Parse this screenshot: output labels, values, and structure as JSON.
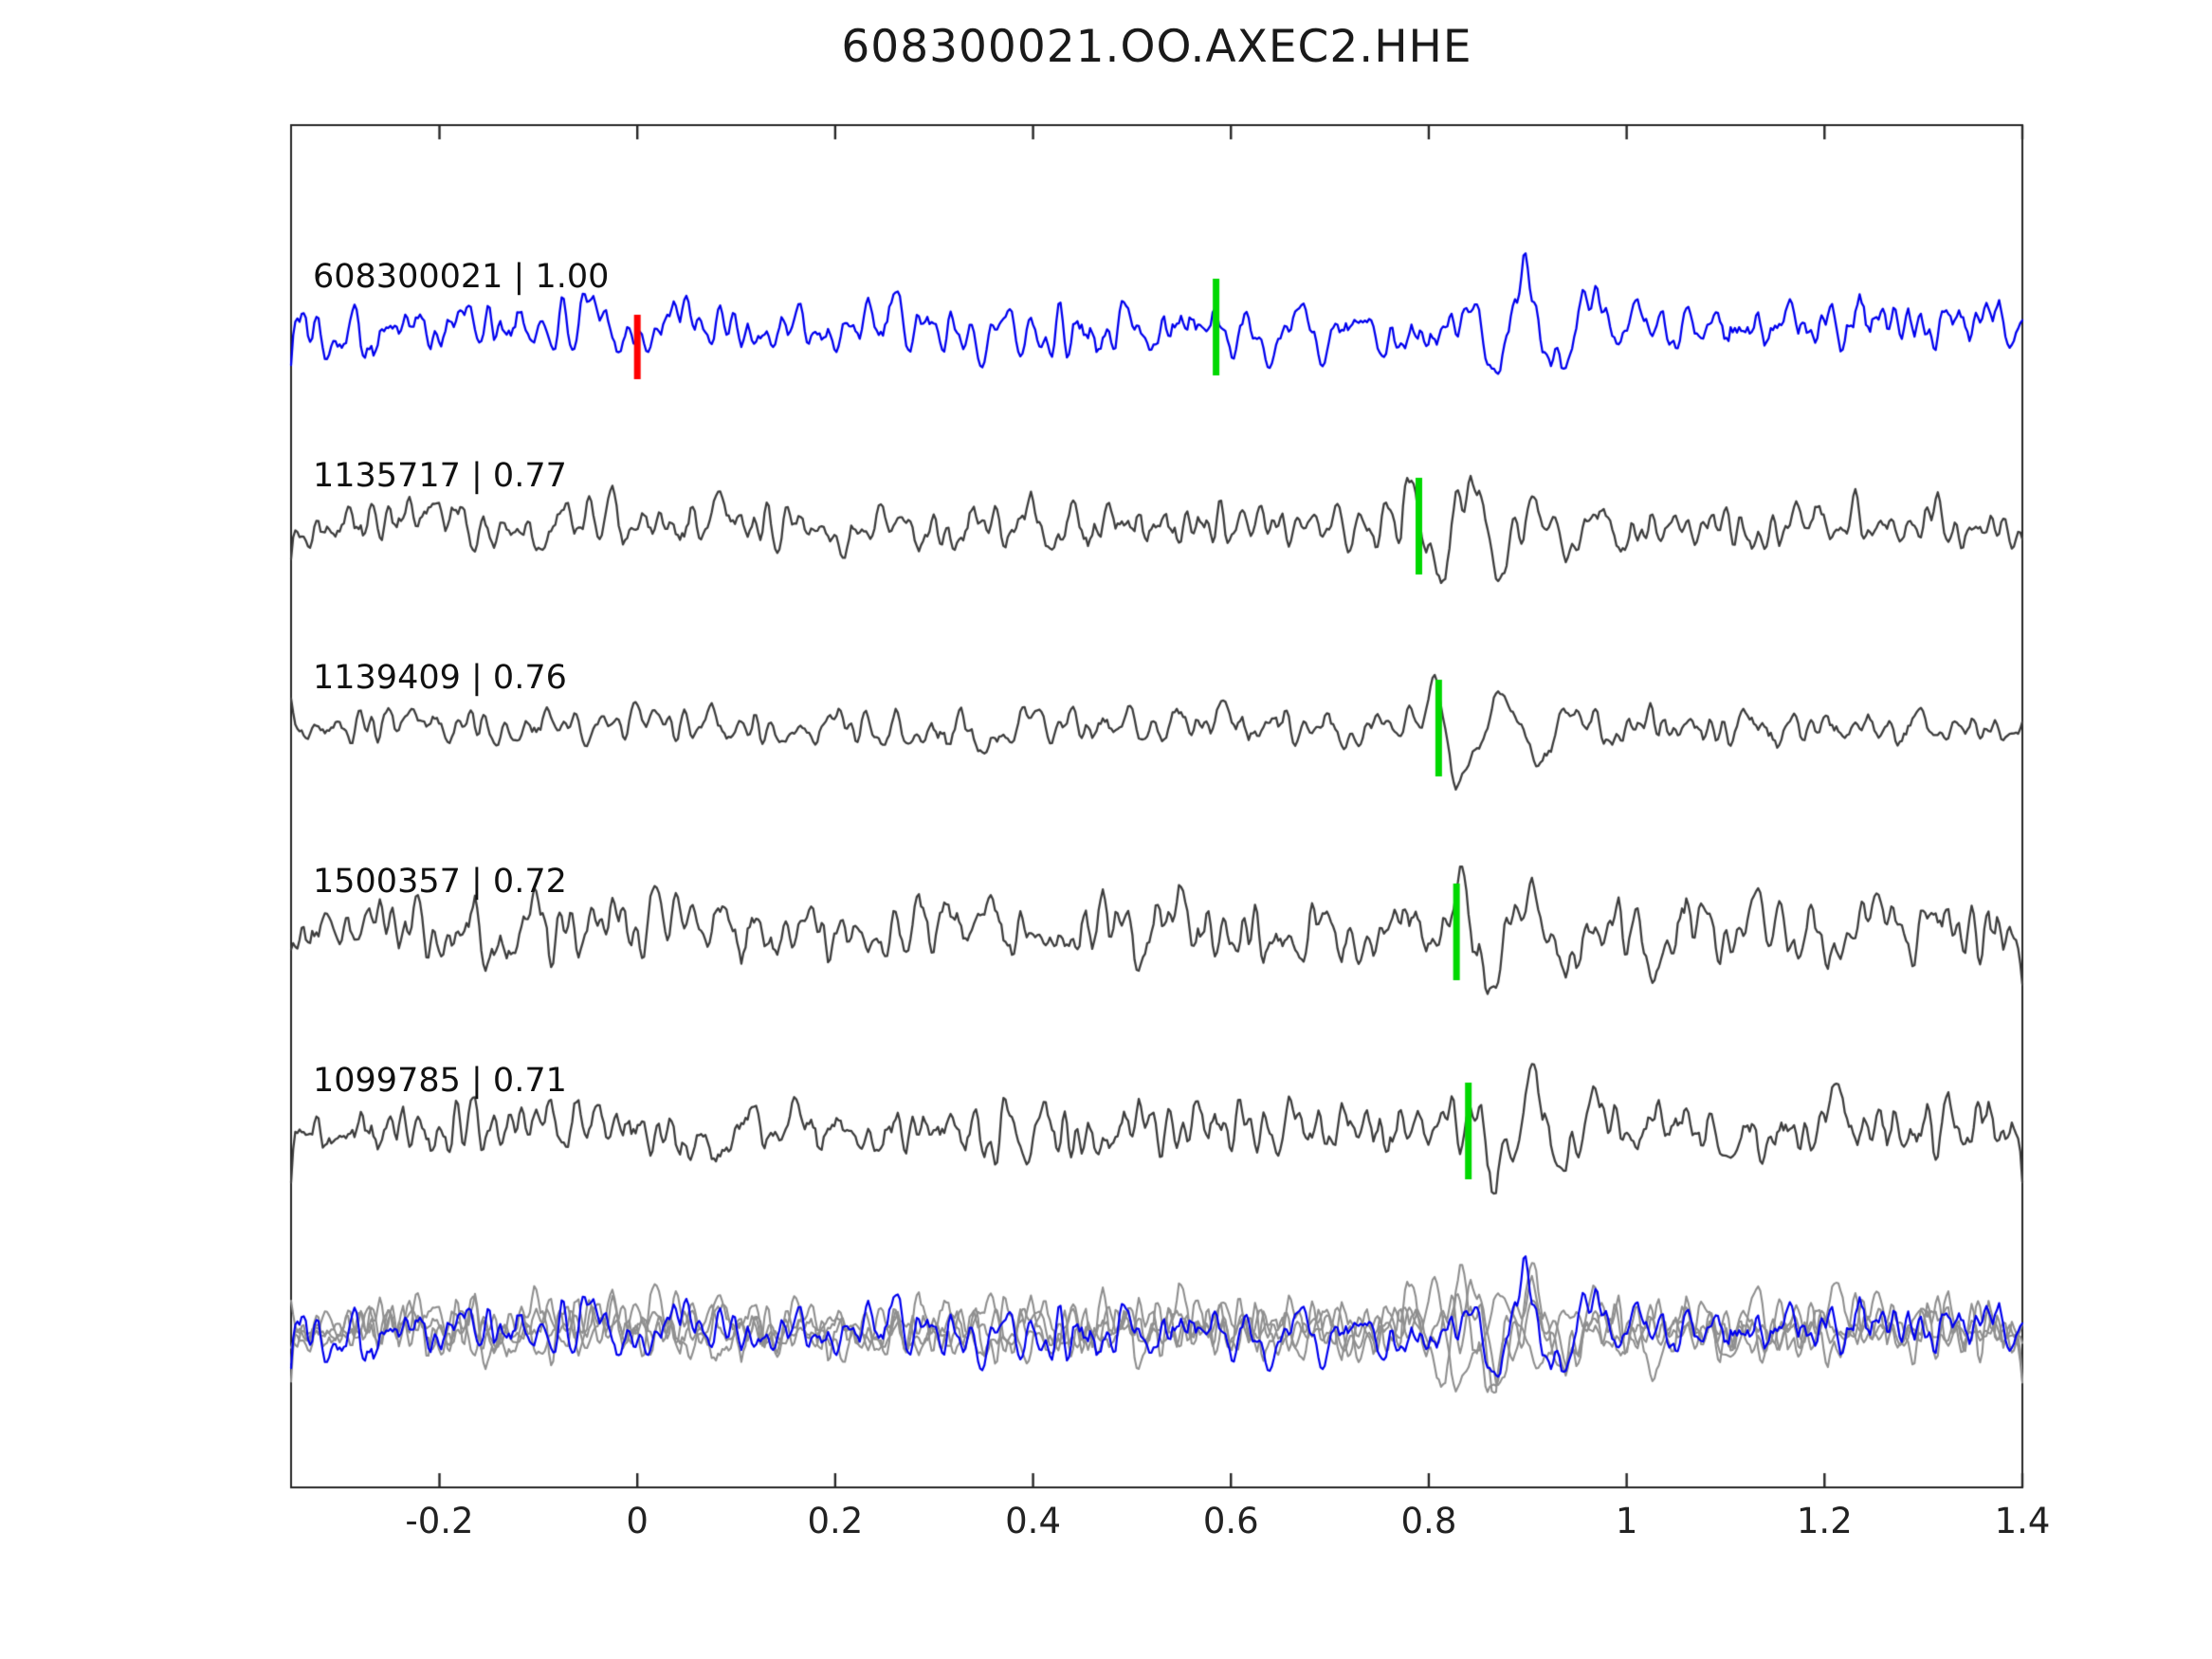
{
  "title": "608300021.OO.AXEC2.HHE",
  "chart_data": {
    "type": "line",
    "subtype": "seismic-waveform-stack",
    "title": "608300021.OO.AXEC2.HHE",
    "xlabel": "",
    "ylabel": "",
    "xlim": [
      -0.35,
      1.4
    ],
    "xticks": [
      {
        "value": -0.2,
        "label": "-0.2"
      },
      {
        "value": 0,
        "label": "0"
      },
      {
        "value": 0.2,
        "label": "0.2"
      },
      {
        "value": 0.4,
        "label": "0.4"
      },
      {
        "value": 0.6,
        "label": "0.6"
      },
      {
        "value": 0.8,
        "label": "0.8"
      },
      {
        "value": 1,
        "label": "1"
      },
      {
        "value": 1.2,
        "label": "1.2"
      },
      {
        "value": 1.4,
        "label": "1.4"
      }
    ],
    "grid": false,
    "legend": null,
    "colors": {
      "template_trace": "#0000ee",
      "detection_trace": "#3d3d3d",
      "overlay_gray": "#8f8f8f",
      "pick_green": "#00d800",
      "marker_red": "#ff0000",
      "axis": "#262626",
      "text": "#111111"
    },
    "traces": [
      {
        "id": "608300021",
        "score": "1.00",
        "label": "608300021 | 1.00",
        "role": "template",
        "color": "#0000ee",
        "pick": {
          "time": 0.585,
          "color": "#00d800"
        },
        "marker": {
          "time": 0.0,
          "color": "#ff0000"
        },
        "synth": {
          "seed": 101,
          "noise": 0.26,
          "events": [
            {
              "t0": 0.855,
              "amp": 1.0,
              "f": 16,
              "decay": 0.1,
              "phase": 3.4
            },
            {
              "t0": 0.572,
              "amp": 0.38,
              "f": 22,
              "decay": 0.045,
              "phase": 1.2
            }
          ]
        }
      },
      {
        "id": "1135717",
        "score": "0.77",
        "label": "1135717 | 0.77",
        "role": "detection",
        "color": "#3d3d3d",
        "pick": {
          "time": 0.79,
          "color": "#00d800"
        },
        "marker": null,
        "synth": {
          "seed": 202,
          "noise": 0.22,
          "events": [
            {
              "t0": 0.772,
              "amp": 0.95,
              "f": 15,
              "decay": 0.11,
              "phase": 1.2
            }
          ]
        }
      },
      {
        "id": "1139409",
        "score": "0.76",
        "label": "1139409 | 0.76",
        "role": "detection",
        "color": "#3d3d3d",
        "pick": {
          "time": 0.81,
          "color": "#00d800"
        },
        "marker": null,
        "synth": {
          "seed": 303,
          "noise": 0.17,
          "events": [
            {
              "t0": 0.793,
              "amp": 0.98,
              "f": 13,
              "decay": 0.1,
              "phase": 1.3
            }
          ]
        }
      },
      {
        "id": "1500357",
        "score": "0.72",
        "label": "1500357 | 0.72",
        "role": "detection",
        "color": "#3d3d3d",
        "pick": {
          "time": 0.828,
          "color": "#00d800"
        },
        "marker": null,
        "synth": {
          "seed": 404,
          "noise": 0.3,
          "events": [
            {
              "t0": 0.818,
              "amp": 1.0,
              "f": 13,
              "decay": 0.12,
              "phase": 1.2
            }
          ]
        }
      },
      {
        "id": "1099785",
        "score": "0.71",
        "label": "1099785 | 0.71",
        "role": "detection",
        "color": "#3d3d3d",
        "pick": {
          "time": 0.84,
          "color": "#00d800"
        },
        "marker": null,
        "synth": {
          "seed": 505,
          "noise": 0.28,
          "events": [
            {
              "t0": 0.833,
              "amp": 0.9,
              "f": 15,
              "decay": 0.1,
              "phase": 1.2
            }
          ]
        }
      }
    ],
    "overlay": {
      "description": "all detection traces superimposed with template trace",
      "gray_color": "#8f8f8f",
      "includes_template": true
    }
  }
}
